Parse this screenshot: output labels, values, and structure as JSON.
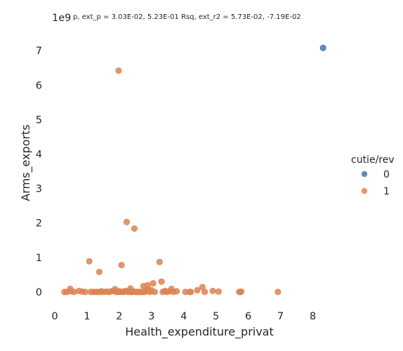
{
  "chart_data": {
    "type": "scatter",
    "title": "p, ext_p = 3.03E-02, 5.23E-01 Rsq, ext_r2 = 5.73E-02, -7.19E-02",
    "xlabel": "Health_expenditure_privat",
    "ylabel": "Arms_exports",
    "y_offset_label": "1e9",
    "xlim": [
      0,
      8.6
    ],
    "ylim": [
      -0.45,
      7.35
    ],
    "x_ticks": [
      0,
      1,
      2,
      3,
      4,
      5,
      6,
      7,
      8
    ],
    "y_ticks": [
      0,
      1,
      2,
      3,
      4,
      5,
      6,
      7
    ],
    "grid": false,
    "legend": {
      "title": "cutie/rev",
      "position": "right"
    },
    "series": [
      {
        "name": "0",
        "color": "#4c72b0",
        "points": [
          [
            8.32,
            7.08
          ]
        ]
      },
      {
        "name": "1",
        "color": "#dd8452",
        "points": [
          [
            1.98,
            6.42
          ],
          [
            2.23,
            2.03
          ],
          [
            2.47,
            1.84
          ],
          [
            1.07,
            0.89
          ],
          [
            3.25,
            0.87
          ],
          [
            2.07,
            0.78
          ],
          [
            1.38,
            0.58
          ],
          [
            3.31,
            0.3
          ],
          [
            3.05,
            0.25
          ],
          [
            2.75,
            0.17
          ],
          [
            2.88,
            0.2
          ],
          [
            4.58,
            0.14
          ],
          [
            2.35,
            0.1
          ],
          [
            1.87,
            0.08
          ],
          [
            0.48,
            0.09
          ],
          [
            3.62,
            0.09
          ],
          [
            4.42,
            0.05
          ],
          [
            4.9,
            0.03
          ],
          [
            3.78,
            0.02
          ],
          [
            3.42,
            0.03
          ],
          [
            0.3,
            0.0
          ],
          [
            0.38,
            0.0
          ],
          [
            0.5,
            0.02
          ],
          [
            0.75,
            0.03
          ],
          [
            0.85,
            0.01
          ],
          [
            0.95,
            0.0
          ],
          [
            1.12,
            0.0
          ],
          [
            1.2,
            0.0
          ],
          [
            1.28,
            0.0
          ],
          [
            1.35,
            0.0
          ],
          [
            1.45,
            0.02
          ],
          [
            1.52,
            0.0
          ],
          [
            1.6,
            0.01
          ],
          [
            1.68,
            0.0
          ],
          [
            1.75,
            0.02
          ],
          [
            1.82,
            0.03
          ],
          [
            1.9,
            0.0
          ],
          [
            2.0,
            0.02
          ],
          [
            2.05,
            0.0
          ],
          [
            2.12,
            0.01
          ],
          [
            2.2,
            0.03
          ],
          [
            2.28,
            0.0
          ],
          [
            2.32,
            0.02
          ],
          [
            2.4,
            0.0
          ],
          [
            2.45,
            0.01
          ],
          [
            2.52,
            0.0
          ],
          [
            2.58,
            0.0
          ],
          [
            2.62,
            0.0
          ],
          [
            2.68,
            0.0
          ],
          [
            2.72,
            0.0
          ],
          [
            2.8,
            0.0
          ],
          [
            2.85,
            0.03
          ],
          [
            2.9,
            0.07
          ],
          [
            2.95,
            0.0
          ],
          [
            3.0,
            0.05
          ],
          [
            3.1,
            0.0
          ],
          [
            3.35,
            0.0
          ],
          [
            3.48,
            0.0
          ],
          [
            3.55,
            0.02
          ],
          [
            3.68,
            0.0
          ],
          [
            4.05,
            0.0
          ],
          [
            4.18,
            0.0
          ],
          [
            4.22,
            0.0
          ],
          [
            4.65,
            0.0
          ],
          [
            5.08,
            0.01
          ],
          [
            5.72,
            0.0
          ],
          [
            5.76,
            0.0
          ],
          [
            5.78,
            0.01
          ],
          [
            6.92,
            0.0
          ],
          [
            1.42,
            0.0
          ],
          [
            0.6,
            0.0
          ],
          [
            1.98,
            0.0
          ],
          [
            2.15,
            0.0
          ],
          [
            2.55,
            0.0
          ],
          [
            2.38,
            0.0
          ]
        ]
      }
    ]
  }
}
